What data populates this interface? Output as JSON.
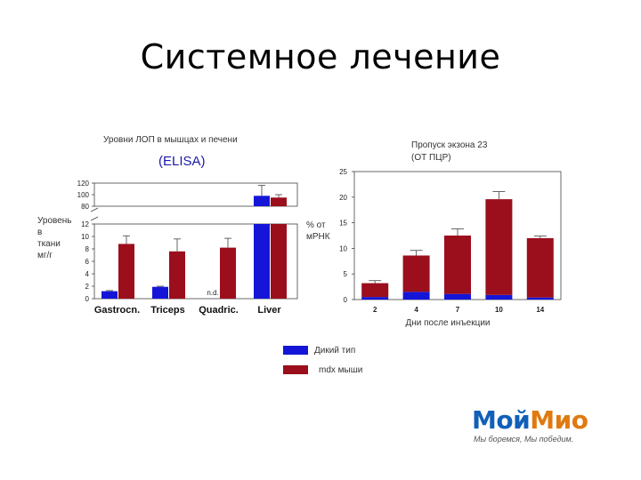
{
  "slide": {
    "title": "Системное лечение"
  },
  "logo": {
    "brand_part1": "Мой",
    "brand_part2": "Мио",
    "tagline": "Мы боремся, Мы победим."
  },
  "legend": {
    "items": [
      {
        "label": "Дикий тип",
        "color": "#1515d8"
      },
      {
        "label": "mdx мыши",
        "color": "#9b0e1c"
      }
    ]
  },
  "chart_data": [
    {
      "type": "bar",
      "title": "Уровни ЛОП в мышцах и печени",
      "subtitle": "(ELISA)",
      "ylabel": [
        "Уровень",
        "в",
        "ткани",
        "мг/г"
      ],
      "categories": [
        "Gastrocn.",
        "Triceps",
        "Quadric.",
        "Liver"
      ],
      "axis_break": true,
      "lower_ylim": [
        0,
        12
      ],
      "upper_ylim": [
        80,
        120
      ],
      "lower_ticks": [
        0,
        2,
        4,
        6,
        8,
        10,
        12
      ],
      "upper_ticks": [
        80,
        100,
        120
      ],
      "annotations": [
        {
          "category": "Quadric.",
          "series": "Дикий тип",
          "text": "n.d."
        }
      ],
      "series": [
        {
          "name": "Дикий тип",
          "color": "#1515d8",
          "values": [
            1.2,
            1.9,
            null,
            98
          ],
          "errors": [
            0.1,
            0.1,
            null,
            18
          ]
        },
        {
          "name": "mdx мыши",
          "color": "#9b0e1c",
          "values": [
            8.8,
            7.6,
            8.2,
            95
          ],
          "errors": [
            1.3,
            2.0,
            1.5,
            5
          ]
        }
      ]
    },
    {
      "type": "bar",
      "stacked": true,
      "title": "Пропуск экзона 23",
      "subtitle": "(ОТ ПЦР)",
      "ylabel": [
        "% от",
        "мРНК"
      ],
      "xlabel": "Дни после инъекции",
      "categories": [
        "2",
        "4",
        "7",
        "10",
        "14"
      ],
      "ylim": [
        0,
        25
      ],
      "yticks": [
        0,
        5,
        10,
        15,
        20,
        25
      ],
      "series": [
        {
          "name": "Дикий тип",
          "color": "#1515d8",
          "values": [
            0.5,
            1.5,
            1.1,
            0.9,
            0.4
          ]
        },
        {
          "name": "mdx мыши",
          "color": "#9b0e1c",
          "values": [
            2.7,
            7.1,
            11.4,
            18.7,
            11.6
          ],
          "errors": [
            0.5,
            1.0,
            1.3,
            1.5,
            0.4
          ]
        }
      ]
    }
  ]
}
